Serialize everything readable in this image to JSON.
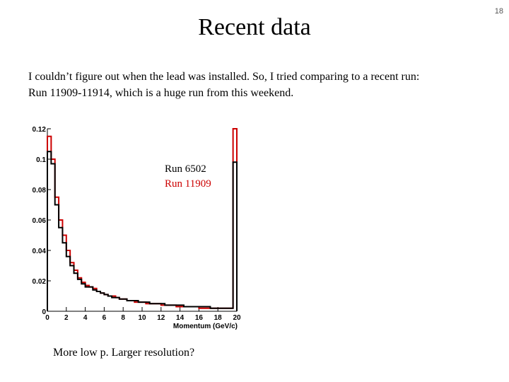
{
  "slide": {
    "title": "Recent data",
    "number": "18",
    "paragraph": [
      "I couldn’t figure out when the lead was installed. So, I tried comparing to a recent run:",
      "Run 11909-11914, which is a huge run from this weekend."
    ],
    "caption": "More low p.  Larger resolution?"
  },
  "chart_data": {
    "type": "histogram",
    "xlabel": "Momentum (GeV/c)",
    "ylabel": "",
    "xlim": [
      0,
      20
    ],
    "ylim": [
      0,
      0.12
    ],
    "x_ticks": [
      "0",
      "2",
      "4",
      "6",
      "8",
      "10",
      "12",
      "14",
      "16",
      "18",
      "20"
    ],
    "y_ticks": [
      "0",
      "0.02",
      "0.04",
      "0.06",
      "0.08",
      "0.1",
      "0.12"
    ],
    "bin_width": 0.4,
    "grid": false,
    "legend_position": "top-right",
    "series": [
      {
        "name": "Run 6502",
        "color": "#000000",
        "values": [
          0.105,
          0.097,
          0.07,
          0.055,
          0.045,
          0.036,
          0.03,
          0.025,
          0.021,
          0.018,
          0.016,
          0.016,
          0.014,
          0.013,
          0.012,
          0.011,
          0.01,
          0.009,
          0.009,
          0.008,
          0.008,
          0.007,
          0.007,
          0.007,
          0.006,
          0.006,
          0.006,
          0.005,
          0.005,
          0.005,
          0.005,
          0.004,
          0.004,
          0.004,
          0.004,
          0.004,
          0.003,
          0.003,
          0.003,
          0.003,
          0.003,
          0.003,
          0.003,
          0.002,
          0.002,
          0.002,
          0.002,
          0.002,
          0.002,
          0.098
        ]
      },
      {
        "name": "Run 11909",
        "color": "#cc0000",
        "values": [
          0.115,
          0.1,
          0.075,
          0.06,
          0.05,
          0.04,
          0.032,
          0.027,
          0.022,
          0.019,
          0.017,
          0.016,
          0.015,
          0.013,
          0.012,
          0.011,
          0.01,
          0.01,
          0.009,
          0.008,
          0.008,
          0.007,
          0.007,
          0.006,
          0.006,
          0.006,
          0.005,
          0.005,
          0.005,
          0.005,
          0.004,
          0.004,
          0.004,
          0.004,
          0.003,
          0.003,
          0.003,
          0.003,
          0.003,
          0.003,
          0.002,
          0.002,
          0.002,
          0.002,
          0.002,
          0.002,
          0.002,
          0.002,
          0.002,
          0.12
        ]
      }
    ]
  }
}
